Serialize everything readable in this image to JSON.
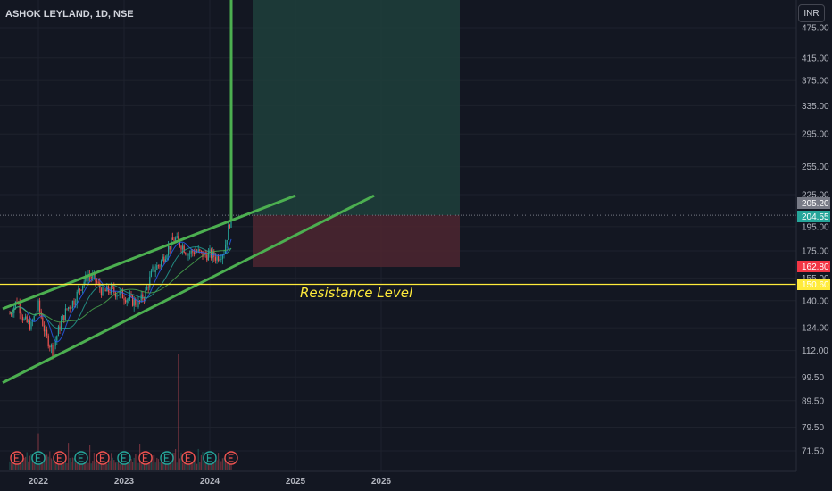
{
  "header": {
    "title": "ASHOK LEYLAND, 1D, NSE"
  },
  "currency": "INR",
  "annotation": {
    "resistance_label": "Resistance Level"
  },
  "colors": {
    "background": "#131722",
    "trendline": "#4caf50",
    "resistance": "#ffeb3b",
    "profit_zone": "#1e3d3a",
    "loss_zone": "#4a2530",
    "up_candle": "#26a69a",
    "down_candle": "#ef5350"
  },
  "chart_data": {
    "type": "line",
    "title": "ASHOK LEYLAND, 1D, NSE",
    "y_scale": "log",
    "ylim": [
      66,
      500
    ],
    "x_ticks": [
      "2022",
      "2023",
      "2024",
      "2025",
      "2026"
    ],
    "y_ticks": [
      "475.00",
      "415.00",
      "375.00",
      "335.00",
      "295.00",
      "255.00",
      "225.00",
      "195.00",
      "175.00",
      "155.00",
      "140.00",
      "124.00",
      "112.00",
      "99.50",
      "89.50",
      "79.50",
      "71.50"
    ],
    "series": [
      {
        "type": "candlestick-approx",
        "x": [
          "2021-09",
          "2021-10",
          "2021-11",
          "2021-12",
          "2022-01",
          "2022-02",
          "2022-03",
          "2022-04",
          "2022-05",
          "2022-06",
          "2022-07",
          "2022-08",
          "2022-09",
          "2022-10",
          "2022-11",
          "2022-12",
          "2023-01",
          "2023-02",
          "2023-03",
          "2023-04",
          "2023-05",
          "2023-06",
          "2023-07",
          "2023-08",
          "2023-09",
          "2023-10",
          "2023-11",
          "2023-12",
          "2024-01",
          "2024-02",
          "2024-03",
          "2024-04"
        ],
        "values": [
          132,
          140,
          128,
          125,
          137,
          120,
          112,
          125,
          135,
          140,
          150,
          157,
          153,
          145,
          147,
          145,
          143,
          140,
          138,
          145,
          160,
          165,
          175,
          185,
          180,
          173,
          175,
          172,
          172,
          170,
          175,
          205
        ]
      }
    ],
    "price_tags": [
      {
        "label": "205.20",
        "value": 205.2,
        "color": "#787b86"
      },
      {
        "label": "204.55",
        "value": 204.55,
        "color": "#26a69a"
      },
      {
        "label": "162.80",
        "value": 162.8,
        "color": "#f23645"
      },
      {
        "label": "150.60",
        "value": 150.6,
        "color": "#ffeb3b"
      }
    ],
    "resistance_level": 150.6,
    "channel": {
      "upper": [
        {
          "x": "2021-08",
          "y": 135
        },
        {
          "x": "2025-01",
          "y": 224
        }
      ],
      "lower": [
        {
          "x": "2021-08",
          "y": 97
        },
        {
          "x": "2025-12",
          "y": 224
        }
      ]
    },
    "position": {
      "entry": 205.2,
      "stop": 162.8,
      "target": 500,
      "start": "2024-07",
      "end": "2026-12"
    }
  }
}
